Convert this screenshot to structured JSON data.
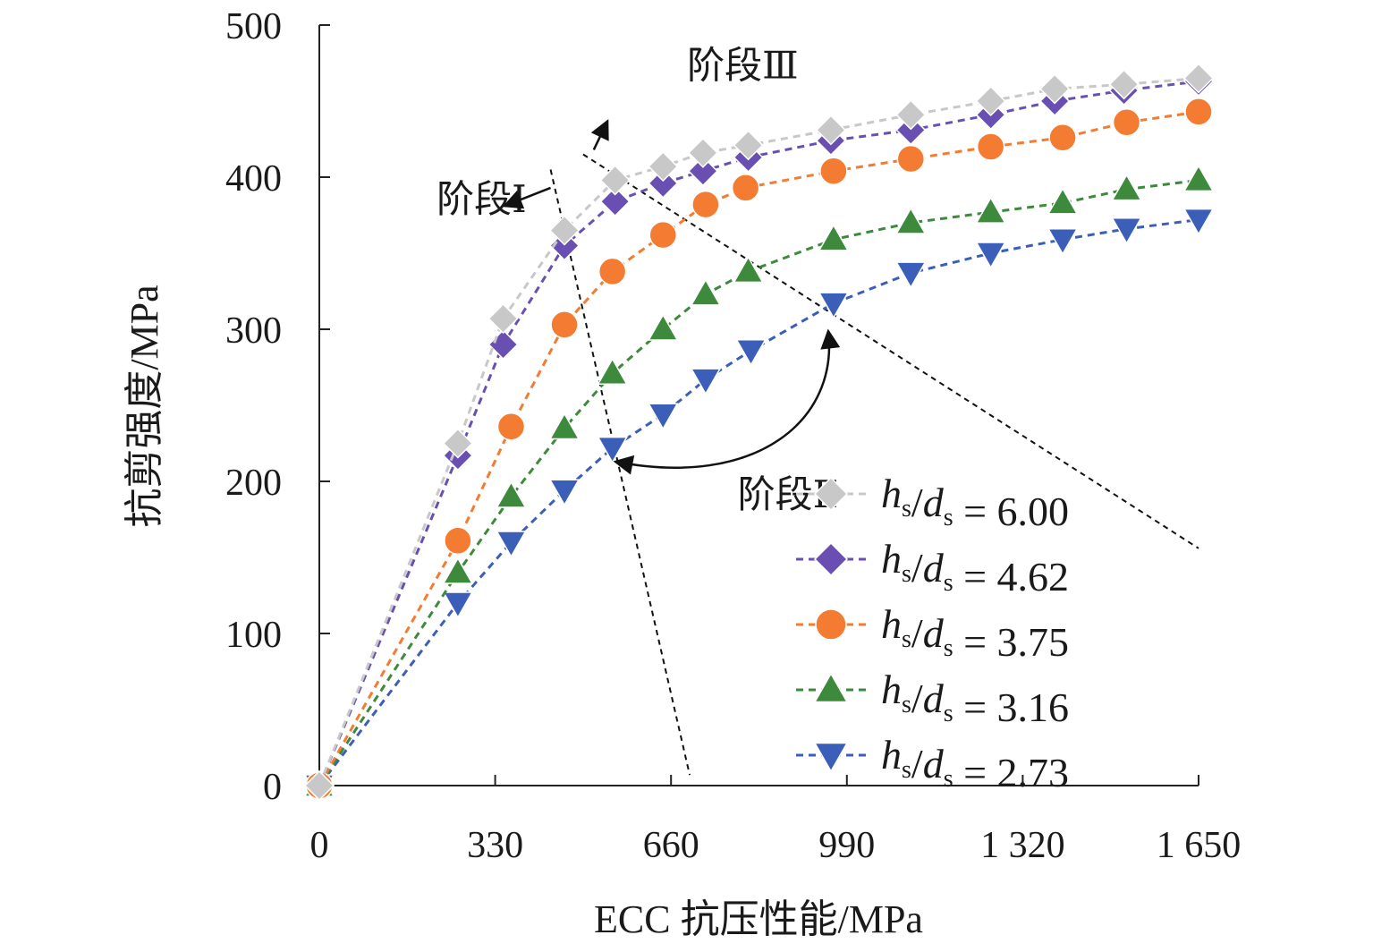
{
  "chart_data": {
    "type": "line",
    "xlabel": "ECC 抗压性能/MPa",
    "ylabel": "抗剪强度/MPa",
    "xlim": [
      0,
      1650
    ],
    "ylim": [
      0,
      500
    ],
    "x_ticks": [
      0,
      330,
      660,
      990,
      1320,
      1650
    ],
    "x_tick_labels": [
      "0",
      "330",
      "660",
      "990",
      "1 320",
      "1 650"
    ],
    "y_ticks": [
      0,
      100,
      200,
      300,
      400,
      500
    ],
    "y_tick_labels": [
      "0",
      "100",
      "200",
      "300",
      "400",
      "500"
    ],
    "grid": false,
    "legend_position": "bottom-right",
    "series": [
      {
        "name": "hs/ds = 6.00",
        "legend_ratio": "6.00",
        "color": "#c8c8c8",
        "marker": "diamond",
        "x": [
          0,
          260,
          345,
          460,
          555,
          645,
          720,
          805,
          960,
          1110,
          1260,
          1380,
          1510,
          1650
        ],
        "y": [
          0,
          225,
          307,
          365,
          398,
          407,
          416,
          421,
          431,
          441,
          450,
          458,
          461,
          465
        ]
      },
      {
        "name": "hs/ds = 4.62",
        "legend_ratio": "4.62",
        "color": "#6a4fb3",
        "marker": "diamond",
        "x": [
          0,
          260,
          345,
          460,
          555,
          645,
          720,
          805,
          960,
          1110,
          1260,
          1380,
          1510,
          1650
        ],
        "y": [
          0,
          217,
          290,
          355,
          384,
          396,
          404,
          413,
          424,
          431,
          441,
          450,
          457,
          463
        ]
      },
      {
        "name": "hs/ds = 3.75",
        "legend_ratio": "3.75",
        "color": "#f47b32",
        "marker": "circle",
        "x": [
          0,
          260,
          360,
          460,
          550,
          645,
          725,
          800,
          965,
          1110,
          1260,
          1395,
          1515,
          1650
        ],
        "y": [
          0,
          161,
          236,
          303,
          338,
          362,
          382,
          393,
          404,
          412,
          420,
          426,
          436,
          443
        ]
      },
      {
        "name": "hs/ds = 3.16",
        "legend_ratio": "3.16",
        "color": "#3d8a3c",
        "marker": "triangle-up",
        "x": [
          0,
          260,
          360,
          460,
          550,
          645,
          725,
          805,
          965,
          1110,
          1260,
          1395,
          1515,
          1650
        ],
        "y": [
          0,
          140,
          190,
          235,
          271,
          300,
          323,
          338,
          359,
          370,
          377,
          383,
          392,
          398
        ]
      },
      {
        "name": "hs/ds = 2.73",
        "legend_ratio": "2.73",
        "color": "#3b5fb8",
        "marker": "triangle-down",
        "x": [
          0,
          260,
          360,
          460,
          550,
          645,
          725,
          810,
          965,
          1110,
          1260,
          1395,
          1515,
          1650
        ],
        "y": [
          0,
          120,
          160,
          194,
          222,
          244,
          267,
          286,
          317,
          337,
          350,
          359,
          366,
          372
        ]
      }
    ],
    "guide_lines": [
      {
        "name": "boundary-stage-1-2",
        "x": [
          434,
          695
        ],
        "y": [
          405,
          7
        ]
      },
      {
        "name": "boundary-stage-2-3",
        "x": [
          495,
          1650
        ],
        "y": [
          415,
          156
        ]
      }
    ],
    "annotations": [
      {
        "name": "stage-1",
        "text": "阶段Ⅰ",
        "x": 220,
        "y": 377,
        "arrow_from": [
          434,
          393
        ],
        "arrow_to": [
          347,
          381
        ]
      },
      {
        "name": "stage-2",
        "text": "阶段Ⅱ",
        "x": 785,
        "y": 183
      },
      {
        "name": "stage-3",
        "text": "阶段Ⅲ",
        "x": 690,
        "y": 465,
        "arrow_from": [
          515,
          418
        ],
        "arrow_to": [
          541,
          437
        ]
      }
    ],
    "legend_text": {
      "h": "h",
      "d": "d",
      "sub": "s",
      "slash": "/",
      "eq": " = "
    }
  }
}
